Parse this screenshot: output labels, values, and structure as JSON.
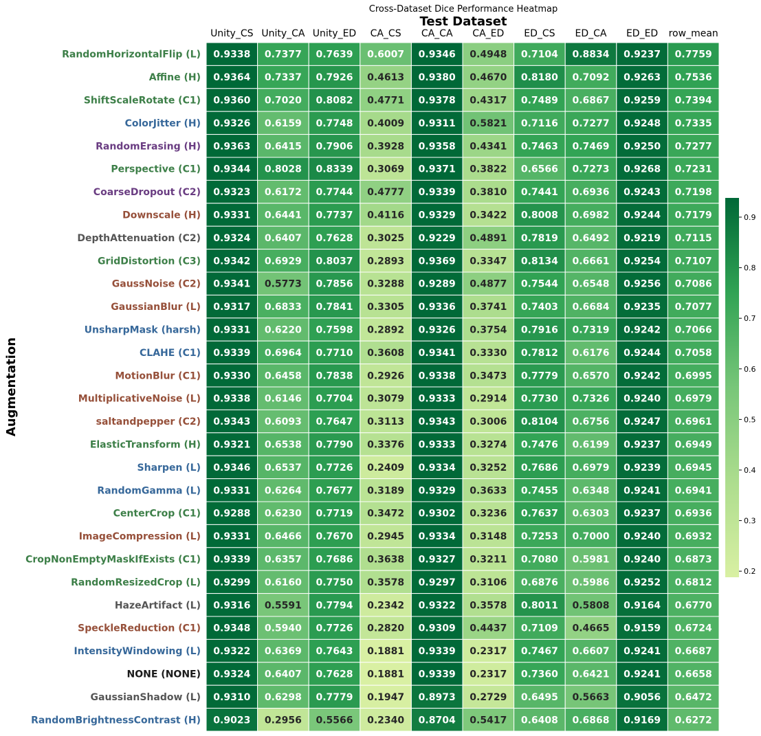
{
  "chart_data": {
    "type": "heatmap",
    "title": "Cross-Dataset Dice Performance Heatmap",
    "xlabel": "Test Dataset",
    "ylabel": "Augmentation",
    "columns": [
      "Unity_CS",
      "Unity_CA",
      "Unity_ED",
      "CA_CS",
      "CA_CA",
      "CA_ED",
      "ED_CS",
      "ED_CA",
      "ED_ED",
      "row_mean"
    ],
    "rows": [
      {
        "label": "RandomHorizontalFlip (L)",
        "color": "#3d7f48",
        "values": [
          0.9338,
          0.7377,
          0.7639,
          0.6007,
          0.9346,
          0.4948,
          0.7104,
          0.8834,
          0.9237,
          0.7759
        ]
      },
      {
        "label": "Affine (H)",
        "color": "#3d7f48",
        "values": [
          0.9364,
          0.7337,
          0.7926,
          0.4613,
          0.938,
          0.467,
          0.818,
          0.7092,
          0.9263,
          0.7536
        ]
      },
      {
        "label": "ShiftScaleRotate (C1)",
        "color": "#3d7f48",
        "values": [
          0.936,
          0.702,
          0.8082,
          0.4771,
          0.9378,
          0.4317,
          0.7489,
          0.6867,
          0.9259,
          0.7394
        ]
      },
      {
        "label": "ColorJitter (H)",
        "color": "#37689a",
        "values": [
          0.9326,
          0.6159,
          0.7748,
          0.4009,
          0.9311,
          0.5821,
          0.7116,
          0.7277,
          0.9248,
          0.7335
        ]
      },
      {
        "label": "RandomErasing (H)",
        "color": "#6a3d82",
        "values": [
          0.9363,
          0.6415,
          0.7906,
          0.3928,
          0.9358,
          0.4341,
          0.7463,
          0.7469,
          0.925,
          0.7277
        ]
      },
      {
        "label": "Perspective (C1)",
        "color": "#3d7f48",
        "values": [
          0.9344,
          0.8028,
          0.8339,
          0.3069,
          0.9371,
          0.3822,
          0.6566,
          0.7273,
          0.9268,
          0.7231
        ]
      },
      {
        "label": "CoarseDropout (C2)",
        "color": "#6a3d82",
        "values": [
          0.9323,
          0.6172,
          0.7744,
          0.4777,
          0.9339,
          0.381,
          0.7441,
          0.6936,
          0.9243,
          0.7198
        ]
      },
      {
        "label": "Downscale (H)",
        "color": "#96503a",
        "values": [
          0.9331,
          0.6441,
          0.7737,
          0.4116,
          0.9329,
          0.3422,
          0.8008,
          0.6982,
          0.9244,
          0.7179
        ]
      },
      {
        "label": "DepthAttenuation (C2)",
        "color": "#555555",
        "values": [
          0.9324,
          0.6407,
          0.7628,
          0.3025,
          0.9229,
          0.4891,
          0.7819,
          0.6492,
          0.9219,
          0.7115
        ]
      },
      {
        "label": "GridDistortion (C3)",
        "color": "#3d7f48",
        "values": [
          0.9342,
          0.6929,
          0.8037,
          0.2893,
          0.9369,
          0.3347,
          0.8134,
          0.6661,
          0.9254,
          0.7107
        ]
      },
      {
        "label": "GaussNoise (C2)",
        "color": "#96503a",
        "values": [
          0.9341,
          0.5773,
          0.7856,
          0.3288,
          0.9289,
          0.4877,
          0.7544,
          0.6548,
          0.9256,
          0.7086
        ]
      },
      {
        "label": "GaussianBlur (L)",
        "color": "#96503a",
        "values": [
          0.9317,
          0.6833,
          0.7841,
          0.3305,
          0.9336,
          0.3741,
          0.7403,
          0.6684,
          0.9235,
          0.7077
        ]
      },
      {
        "label": "UnsharpMask (harsh)",
        "color": "#37689a",
        "values": [
          0.9331,
          0.622,
          0.7598,
          0.2892,
          0.9326,
          0.3754,
          0.7916,
          0.7319,
          0.9242,
          0.7066
        ]
      },
      {
        "label": "CLAHE (C1)",
        "color": "#37689a",
        "values": [
          0.9339,
          0.6964,
          0.771,
          0.3608,
          0.9341,
          0.333,
          0.7812,
          0.6176,
          0.9244,
          0.7058
        ]
      },
      {
        "label": "MotionBlur (C1)",
        "color": "#96503a",
        "values": [
          0.933,
          0.6458,
          0.7838,
          0.2926,
          0.9338,
          0.3473,
          0.7779,
          0.657,
          0.9242,
          0.6995
        ]
      },
      {
        "label": "MultiplicativeNoise (L)",
        "color": "#96503a",
        "values": [
          0.9338,
          0.6146,
          0.7704,
          0.3079,
          0.9333,
          0.2914,
          0.773,
          0.7326,
          0.924,
          0.6979
        ]
      },
      {
        "label": "saltandpepper (C2)",
        "color": "#96503a",
        "values": [
          0.9343,
          0.6093,
          0.7647,
          0.3113,
          0.9343,
          0.3006,
          0.8104,
          0.6756,
          0.9247,
          0.6961
        ]
      },
      {
        "label": "ElasticTransform (H)",
        "color": "#3d7f48",
        "values": [
          0.9321,
          0.6538,
          0.779,
          0.3376,
          0.9333,
          0.3274,
          0.7476,
          0.6199,
          0.9237,
          0.6949
        ]
      },
      {
        "label": "Sharpen (L)",
        "color": "#37689a",
        "values": [
          0.9346,
          0.6537,
          0.7726,
          0.2409,
          0.9334,
          0.3252,
          0.7686,
          0.6979,
          0.9239,
          0.6945
        ]
      },
      {
        "label": "RandomGamma (L)",
        "color": "#37689a",
        "values": [
          0.9331,
          0.6264,
          0.7677,
          0.3189,
          0.9329,
          0.3633,
          0.7455,
          0.6348,
          0.9241,
          0.6941
        ]
      },
      {
        "label": "CenterCrop (C1)",
        "color": "#3d7f48",
        "values": [
          0.9288,
          0.623,
          0.7719,
          0.3472,
          0.9302,
          0.3236,
          0.7637,
          0.6303,
          0.9237,
          0.6936
        ]
      },
      {
        "label": "ImageCompression (L)",
        "color": "#96503a",
        "values": [
          0.9331,
          0.6466,
          0.767,
          0.2945,
          0.9334,
          0.3148,
          0.7253,
          0.7,
          0.924,
          0.6932
        ]
      },
      {
        "label": "CropNonEmptyMaskIfExists (C1)",
        "color": "#3d7f48",
        "values": [
          0.9339,
          0.6357,
          0.7686,
          0.3638,
          0.9327,
          0.3211,
          0.708,
          0.5981,
          0.924,
          0.6873
        ]
      },
      {
        "label": "RandomResizedCrop (L)",
        "color": "#3d7f48",
        "values": [
          0.9299,
          0.616,
          0.775,
          0.3578,
          0.9297,
          0.3106,
          0.6876,
          0.5986,
          0.9252,
          0.6812
        ]
      },
      {
        "label": "HazeArtifact (L)",
        "color": "#555555",
        "values": [
          0.9316,
          0.5591,
          0.7794,
          0.2342,
          0.9322,
          0.3578,
          0.8011,
          0.5808,
          0.9164,
          0.677
        ]
      },
      {
        "label": "SpeckleReduction (C1)",
        "color": "#96503a",
        "values": [
          0.9348,
          0.594,
          0.7726,
          0.282,
          0.9309,
          0.4437,
          0.7109,
          0.4665,
          0.9159,
          0.6724
        ]
      },
      {
        "label": "IntensityWindowing (L)",
        "color": "#37689a",
        "values": [
          0.9322,
          0.6369,
          0.7643,
          0.1881,
          0.9339,
          0.2317,
          0.7467,
          0.6607,
          0.9241,
          0.6687
        ]
      },
      {
        "label": "NONE (NONE)",
        "color": "#1a1a1a",
        "values": [
          0.9324,
          0.6407,
          0.7628,
          0.1881,
          0.9339,
          0.2317,
          0.736,
          0.6421,
          0.9241,
          0.6658
        ]
      },
      {
        "label": "GaussianShadow (L)",
        "color": "#555555",
        "values": [
          0.931,
          0.6298,
          0.7779,
          0.1947,
          0.8973,
          0.2729,
          0.6495,
          0.5663,
          0.9056,
          0.6472
        ]
      },
      {
        "label": "RandomBrightnessContrast (H)",
        "color": "#37689a",
        "values": [
          0.9023,
          0.2956,
          0.5566,
          0.234,
          0.8704,
          0.5417,
          0.6408,
          0.6868,
          0.9169,
          0.6272
        ]
      }
    ],
    "colorbar": {
      "range": [
        0.188,
        0.938
      ],
      "ticks": [
        "0.2",
        "0.3",
        "0.4",
        "0.5",
        "0.6",
        "0.7",
        "0.8",
        "0.9"
      ],
      "colormap": "YlGn"
    }
  }
}
